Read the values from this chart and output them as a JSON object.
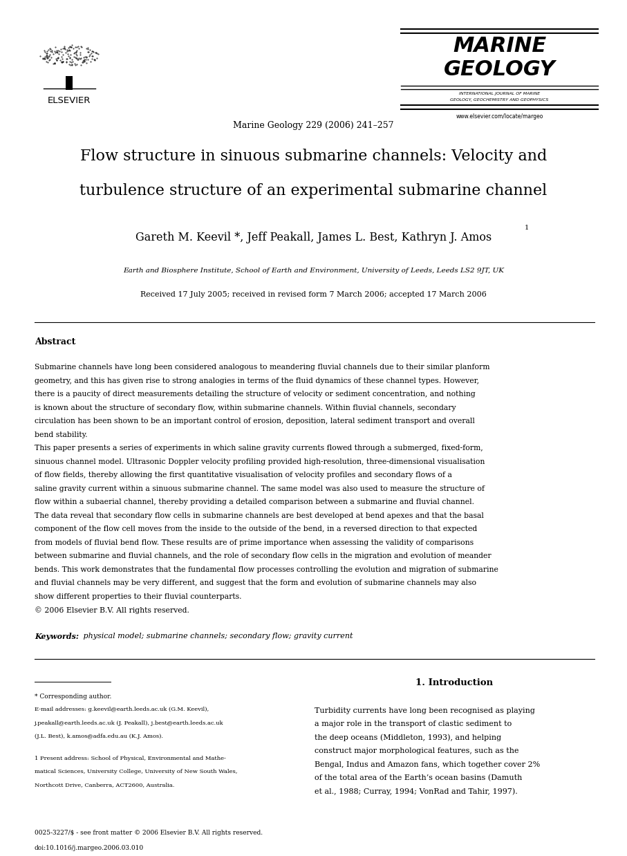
{
  "title_line1": "Flow structure in sinuous submarine channels: Velocity and",
  "title_line2": "turbulence structure of an experimental submarine channel",
  "authors": "Gareth M. Keevil *, Jeff Peakall, James L. Best, Kathryn J. Amos",
  "author_superscript": "1",
  "affiliation": "Earth and Biosphere Institute, School of Earth and Environment, University of Leeds, Leeds LS2 9JT, UK",
  "received": "Received 17 July 2005; received in revised form 7 March 2006; accepted 17 March 2006",
  "journal_center": "Marine Geology 229 (2006) 241–257",
  "journal_name_line1": "MARINE",
  "journal_name_line2": "GEOLOGY",
  "journal_subtitle_1": "INTERNATIONAL JOURNAL OF MARINE",
  "journal_subtitle_2": "GEOLOGY, GEOCHEMISTRY AND GEOPHYSICS",
  "journal_url": "www.elsevier.com/locate/margeo",
  "elsevier_label": "ELSEVIER",
  "abstract_label": "Abstract",
  "abstract_para1": "    Submarine channels have long been considered analogous to meandering fluvial channels due to their similar planform geometry, and this has given rise to strong analogies in terms of the fluid dynamics of these channel types. However, there is a paucity of direct measurements detailing the structure of velocity or sediment concentration, and nothing is known about the structure of secondary flow, within submarine channels. Within fluvial channels, secondary circulation has been shown to be an important control of erosion, deposition, lateral sediment transport and overall bend stability.",
  "abstract_para2": "    This paper presents a series of experiments in which saline gravity currents flowed through a submerged, fixed-form, sinuous channel model. Ultrasonic Doppler velocity profiling provided high-resolution, three-dimensional visualisation of flow fields, thereby allowing the first quantitative visualisation of velocity profiles and secondary flows of a saline gravity current within a sinuous submarine channel. The same model was also used to measure the structure of flow within a subaerial channel, thereby providing a detailed comparison between a submarine and fluvial channel.",
  "abstract_para3": "    The data reveal that secondary flow cells in submarine channels are best developed at bend apexes and that the basal component of the flow cell moves from the inside to the outside of the bend, in a reversed direction to that expected from models of fluvial bend flow. These results are of prime importance when assessing the validity of comparisons between submarine and fluvial channels, and the role of secondary flow cells in the migration and evolution of meander bends. This work demonstrates that the fundamental flow processes controlling the evolution and migration of submarine and fluvial channels may be very different, and suggest that the form and evolution of submarine channels may also show different properties to their fluvial counterparts.",
  "abstract_copyright": "© 2006 Elsevier B.V. All rights reserved.",
  "keywords_label": "Keywords:",
  "keywords_text": " physical model; submarine channels; secondary flow; gravity current",
  "intro_heading": "1. Introduction",
  "intro_text": "Turbidity currents have long been recognised as playing a major role in the transport of clastic sediment to the deep oceans (Middleton, 1993), and helping construct major morphological features, such as the Bengal, Indus and Amazon fans, which together cover 2% of the total area of the Earth’s ocean basins (Damuth et al., 1988; Curray, 1994; VonRad and Tahir, 1997).",
  "fn_star": "* Corresponding author.",
  "fn_email1": "E-mail addresses: g.keevil@earth.leeds.ac.uk (G.M. Keevil),",
  "fn_email2": "j.peakall@earth.leeds.ac.uk (J. Peakall), j.best@earth.leeds.ac.uk",
  "fn_email3": "(J.L. Best), k.amos@adfa.edu.au (K.J. Amos).",
  "fn1_line1": "1 Present address: School of Physical, Environmental and Mathe-",
  "fn1_line2": "matical Sciences, University College, University of New South Wales,",
  "fn1_line3": "Northcott Drive, Canberra, ACT2600, Australia.",
  "footer_issn": "0025-3227/$ - see front matter © 2006 Elsevier B.V. All rights reserved.",
  "footer_doi": "doi:10.1016/j.margeo.2006.03.010",
  "bg_color": "#ffffff"
}
